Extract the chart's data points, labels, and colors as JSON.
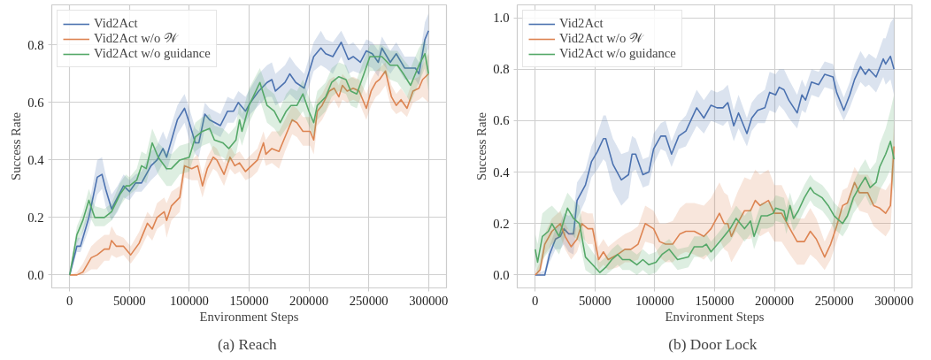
{
  "chart_data": [
    {
      "type": "line",
      "title": "(a)  Reach",
      "xlabel": "Environment Steps",
      "ylabel": "Success Rate",
      "xlim": [
        -15000,
        315000
      ],
      "ylim": [
        -0.045,
        0.94
      ],
      "xticks": [
        0,
        50000,
        100000,
        150000,
        200000,
        250000,
        300000
      ],
      "yticks": [
        {
          "value": 0,
          "label": "0.0"
        },
        {
          "value": 0.2,
          "label": "0.2"
        },
        {
          "value": 0.4,
          "label": "0.4"
        },
        {
          "value": 0.6,
          "label": "0.6"
        },
        {
          "value": 0.8,
          "label": "0.8"
        }
      ],
      "grid": true,
      "legend": "top left",
      "line_style": "solid",
      "marker": "none",
      "series": [
        {
          "name": "Vid2Act",
          "color": "#4c72b0",
          "x": [
            0,
            6000,
            9000,
            16000,
            23000,
            27000,
            30000,
            35000,
            40000,
            45000,
            50000,
            55000,
            60000,
            68000,
            73000,
            78000,
            81000,
            90000,
            96000,
            100000,
            105000,
            108000,
            113000,
            117000,
            126000,
            132000,
            137000,
            141000,
            147000,
            151000,
            158000,
            165000,
            169000,
            172000,
            180000,
            184000,
            189000,
            196000,
            204000,
            210000,
            214000,
            220000,
            227000,
            233000,
            237000,
            243000,
            248000,
            253000,
            258000,
            261000,
            268000,
            273000,
            280000,
            289000,
            292000,
            297000,
            300000
          ],
          "values": [
            0,
            0.1,
            0.1,
            0.2,
            0.34,
            0.35,
            0.3,
            0.23,
            0.27,
            0.31,
            0.29,
            0.32,
            0.32,
            0.38,
            0.4,
            0.44,
            0.41,
            0.54,
            0.58,
            0.53,
            0.46,
            0.46,
            0.56,
            0.54,
            0.52,
            0.57,
            0.57,
            0.6,
            0.57,
            0.6,
            0.64,
            0.67,
            0.68,
            0.64,
            0.67,
            0.7,
            0.67,
            0.65,
            0.76,
            0.79,
            0.77,
            0.76,
            0.81,
            0.75,
            0.76,
            0.74,
            0.78,
            0.77,
            0.74,
            0.79,
            0.74,
            0.77,
            0.72,
            0.72,
            0.7,
            0.82,
            0.85
          ],
          "lower": [
            0,
            0.08,
            0.08,
            0.16,
            0.28,
            0.3,
            0.24,
            0.19,
            0.22,
            0.27,
            0.26,
            0.29,
            0.29,
            0.33,
            0.35,
            0.39,
            0.36,
            0.49,
            0.53,
            0.47,
            0.42,
            0.41,
            0.51,
            0.5,
            0.48,
            0.53,
            0.53,
            0.56,
            0.53,
            0.56,
            0.59,
            0.62,
            0.62,
            0.59,
            0.61,
            0.63,
            0.61,
            0.6,
            0.71,
            0.73,
            0.72,
            0.7,
            0.76,
            0.7,
            0.71,
            0.7,
            0.73,
            0.72,
            0.69,
            0.74,
            0.7,
            0.73,
            0.68,
            0.68,
            0.66,
            0.76,
            0.79
          ],
          "upper": [
            0.02,
            0.13,
            0.13,
            0.24,
            0.4,
            0.41,
            0.35,
            0.28,
            0.31,
            0.35,
            0.33,
            0.35,
            0.36,
            0.43,
            0.45,
            0.5,
            0.47,
            0.59,
            0.63,
            0.58,
            0.51,
            0.5,
            0.6,
            0.58,
            0.56,
            0.62,
            0.61,
            0.64,
            0.62,
            0.65,
            0.7,
            0.73,
            0.74,
            0.7,
            0.73,
            0.76,
            0.73,
            0.7,
            0.81,
            0.85,
            0.82,
            0.81,
            0.85,
            0.8,
            0.81,
            0.78,
            0.82,
            0.81,
            0.78,
            0.83,
            0.78,
            0.81,
            0.76,
            0.76,
            0.74,
            0.88,
            0.91
          ]
        },
        {
          "name": "Vid2Act w/o 𝒲",
          "color": "#dd8452",
          "x": [
            0,
            6000,
            11000,
            18000,
            23000,
            29000,
            33000,
            35000,
            39000,
            45000,
            51000,
            58000,
            65000,
            69000,
            73000,
            79000,
            81000,
            85000,
            92000,
            96000,
            102000,
            107000,
            111000,
            115000,
            120000,
            123000,
            129000,
            134000,
            138000,
            142000,
            147000,
            152000,
            157000,
            162000,
            164000,
            169000,
            175000,
            180000,
            186000,
            190000,
            195000,
            201000,
            204000,
            207000,
            211000,
            217000,
            221000,
            225000,
            228000,
            232000,
            237000,
            242000,
            248000,
            252000,
            256000,
            259000,
            264000,
            269000,
            273000,
            277000,
            282000,
            287000,
            292000,
            295000,
            300000
          ],
          "values": [
            0,
            0,
            0.01,
            0.06,
            0.07,
            0.09,
            0.09,
            0.12,
            0.1,
            0.1,
            0.07,
            0.11,
            0.18,
            0.16,
            0.2,
            0.22,
            0.19,
            0.24,
            0.27,
            0.38,
            0.37,
            0.38,
            0.31,
            0.37,
            0.41,
            0.4,
            0.35,
            0.41,
            0.38,
            0.39,
            0.36,
            0.38,
            0.4,
            0.46,
            0.42,
            0.44,
            0.43,
            0.48,
            0.54,
            0.53,
            0.5,
            0.5,
            0.47,
            0.57,
            0.59,
            0.64,
            0.65,
            0.62,
            0.66,
            0.64,
            0.65,
            0.64,
            0.58,
            0.64,
            0.67,
            0.68,
            0.71,
            0.62,
            0.59,
            0.61,
            0.58,
            0.64,
            0.65,
            0.68,
            0.7
          ],
          "lower": [
            0,
            0,
            0,
            0.02,
            0.02,
            0.05,
            0.05,
            0.07,
            0.06,
            0.07,
            0.04,
            0.08,
            0.14,
            0.12,
            0.16,
            0.18,
            0.13,
            0.19,
            0.22,
            0.34,
            0.33,
            0.33,
            0.27,
            0.33,
            0.37,
            0.36,
            0.31,
            0.37,
            0.35,
            0.36,
            0.33,
            0.34,
            0.36,
            0.41,
            0.38,
            0.39,
            0.37,
            0.43,
            0.49,
            0.48,
            0.45,
            0.45,
            0.42,
            0.52,
            0.54,
            0.59,
            0.61,
            0.58,
            0.61,
            0.6,
            0.61,
            0.6,
            0.54,
            0.59,
            0.62,
            0.63,
            0.66,
            0.58,
            0.56,
            0.57,
            0.55,
            0.6,
            0.61,
            0.62,
            0.6
          ],
          "upper": [
            0,
            0.01,
            0.04,
            0.1,
            0.12,
            0.14,
            0.14,
            0.17,
            0.14,
            0.13,
            0.1,
            0.15,
            0.22,
            0.2,
            0.25,
            0.27,
            0.25,
            0.29,
            0.31,
            0.41,
            0.4,
            0.42,
            0.35,
            0.41,
            0.45,
            0.44,
            0.39,
            0.45,
            0.42,
            0.43,
            0.4,
            0.42,
            0.44,
            0.5,
            0.47,
            0.5,
            0.5,
            0.54,
            0.59,
            0.58,
            0.55,
            0.55,
            0.52,
            0.61,
            0.63,
            0.68,
            0.69,
            0.66,
            0.7,
            0.68,
            0.69,
            0.68,
            0.63,
            0.68,
            0.71,
            0.72,
            0.74,
            0.66,
            0.63,
            0.65,
            0.62,
            0.68,
            0.69,
            0.73,
            0.77
          ]
        },
        {
          "name": "Vid2Act w/o guidance",
          "color": "#55a868",
          "x": [
            0,
            6000,
            11000,
            16000,
            21000,
            29000,
            35000,
            42000,
            47000,
            50000,
            56000,
            60000,
            64000,
            69000,
            74000,
            81000,
            85000,
            92000,
            100000,
            105000,
            111000,
            117000,
            121000,
            128000,
            133000,
            139000,
            142000,
            144000,
            150000,
            159000,
            165000,
            171000,
            176000,
            181000,
            185000,
            190000,
            195000,
            200000,
            204000,
            207000,
            214000,
            219000,
            225000,
            231000,
            235000,
            240000,
            246000,
            251000,
            255000,
            261000,
            268000,
            274000,
            279000,
            285000,
            292000,
            297000,
            300000
          ],
          "values": [
            0,
            0.14,
            0.19,
            0.26,
            0.2,
            0.2,
            0.22,
            0.28,
            0.31,
            0.31,
            0.33,
            0.38,
            0.37,
            0.46,
            0.41,
            0.37,
            0.37,
            0.4,
            0.41,
            0.48,
            0.5,
            0.51,
            0.47,
            0.46,
            0.44,
            0.47,
            0.54,
            0.5,
            0.59,
            0.67,
            0.59,
            0.57,
            0.53,
            0.57,
            0.59,
            0.59,
            0.63,
            0.57,
            0.53,
            0.59,
            0.62,
            0.67,
            0.69,
            0.68,
            0.64,
            0.63,
            0.7,
            0.76,
            0.76,
            0.76,
            0.73,
            0.73,
            0.7,
            0.66,
            0.73,
            0.77,
            0.7
          ],
          "lower": [
            0,
            0.11,
            0.15,
            0.21,
            0.17,
            0.17,
            0.19,
            0.24,
            0.27,
            0.28,
            0.3,
            0.33,
            0.32,
            0.4,
            0.35,
            0.31,
            0.31,
            0.35,
            0.36,
            0.43,
            0.45,
            0.46,
            0.42,
            0.41,
            0.39,
            0.42,
            0.48,
            0.45,
            0.53,
            0.61,
            0.53,
            0.51,
            0.48,
            0.51,
            0.53,
            0.54,
            0.57,
            0.52,
            0.48,
            0.54,
            0.57,
            0.62,
            0.64,
            0.63,
            0.59,
            0.58,
            0.65,
            0.71,
            0.71,
            0.71,
            0.68,
            0.67,
            0.64,
            0.6,
            0.67,
            0.72,
            0.64
          ],
          "upper": [
            0,
            0.17,
            0.22,
            0.3,
            0.24,
            0.23,
            0.25,
            0.32,
            0.35,
            0.34,
            0.37,
            0.43,
            0.42,
            0.51,
            0.46,
            0.43,
            0.42,
            0.45,
            0.46,
            0.53,
            0.55,
            0.56,
            0.52,
            0.51,
            0.49,
            0.52,
            0.6,
            0.56,
            0.65,
            0.72,
            0.65,
            0.63,
            0.58,
            0.63,
            0.65,
            0.64,
            0.68,
            0.62,
            0.58,
            0.64,
            0.67,
            0.72,
            0.74,
            0.73,
            0.69,
            0.68,
            0.75,
            0.8,
            0.8,
            0.8,
            0.78,
            0.78,
            0.75,
            0.72,
            0.79,
            0.82,
            0.76
          ]
        }
      ]
    },
    {
      "type": "line",
      "title": "(b)  Door Lock",
      "xlabel": "Environment Steps",
      "ylabel": "Success Rate",
      "xlim": [
        -15000,
        315000
      ],
      "ylim": [
        -0.05,
        1.05
      ],
      "xticks": [
        0,
        50000,
        100000,
        150000,
        200000,
        250000,
        300000
      ],
      "yticks": [
        {
          "value": 0,
          "label": "0.0"
        },
        {
          "value": 0.2,
          "label": "0.2"
        },
        {
          "value": 0.4,
          "label": "0.4"
        },
        {
          "value": 0.6,
          "label": "0.6"
        },
        {
          "value": 0.8,
          "label": "0.8"
        },
        {
          "value": 1.0,
          "label": "1.0"
        }
      ],
      "grid": true,
      "legend": "top left",
      "line_style": "solid",
      "marker": "none",
      "series": [
        {
          "name": "Vid2Act",
          "color": "#4c72b0",
          "x": [
            0,
            8000,
            12000,
            17000,
            21000,
            24000,
            28000,
            32000,
            35000,
            42000,
            47000,
            52000,
            57000,
            59000,
            65000,
            72000,
            78000,
            81000,
            84000,
            90000,
            95000,
            99000,
            105000,
            109000,
            114000,
            120000,
            126000,
            135000,
            141000,
            147000,
            152000,
            157000,
            161000,
            166000,
            170000,
            177000,
            181000,
            186000,
            192000,
            196000,
            201000,
            204000,
            208000,
            212000,
            219000,
            223000,
            226000,
            231000,
            237000,
            242000,
            249000,
            252000,
            258000,
            263000,
            267000,
            272000,
            276000,
            279000,
            285000,
            291000,
            293000,
            297000,
            300000
          ],
          "values": [
            0,
            0,
            0.08,
            0.14,
            0.15,
            0.18,
            0.16,
            0.16,
            0.29,
            0.35,
            0.44,
            0.48,
            0.53,
            0.53,
            0.43,
            0.37,
            0.39,
            0.47,
            0.47,
            0.39,
            0.4,
            0.49,
            0.54,
            0.54,
            0.47,
            0.54,
            0.56,
            0.65,
            0.61,
            0.66,
            0.65,
            0.65,
            0.67,
            0.58,
            0.63,
            0.55,
            0.61,
            0.64,
            0.65,
            0.71,
            0.7,
            0.73,
            0.72,
            0.68,
            0.63,
            0.7,
            0.68,
            0.75,
            0.74,
            0.78,
            0.77,
            0.71,
            0.64,
            0.7,
            0.76,
            0.81,
            0.78,
            0.8,
            0.77,
            0.84,
            0.82,
            0.85,
            0.8
          ],
          "lower": [
            0,
            0,
            0.05,
            0.1,
            0.1,
            0.12,
            0.09,
            0.08,
            0.22,
            0.29,
            0.38,
            0.41,
            0.45,
            0.44,
            0.33,
            0.27,
            0.3,
            0.4,
            0.41,
            0.34,
            0.35,
            0.43,
            0.49,
            0.48,
            0.42,
            0.49,
            0.5,
            0.58,
            0.55,
            0.6,
            0.59,
            0.58,
            0.6,
            0.52,
            0.57,
            0.5,
            0.56,
            0.59,
            0.59,
            0.64,
            0.63,
            0.66,
            0.64,
            0.61,
            0.57,
            0.64,
            0.63,
            0.7,
            0.69,
            0.73,
            0.72,
            0.66,
            0.6,
            0.65,
            0.7,
            0.75,
            0.73,
            0.74,
            0.71,
            0.77,
            0.74,
            0.76,
            0.7
          ],
          "upper": [
            0,
            0.02,
            0.11,
            0.18,
            0.2,
            0.24,
            0.23,
            0.24,
            0.36,
            0.41,
            0.5,
            0.55,
            0.62,
            0.62,
            0.53,
            0.47,
            0.48,
            0.54,
            0.53,
            0.45,
            0.46,
            0.55,
            0.59,
            0.6,
            0.52,
            0.59,
            0.62,
            0.72,
            0.68,
            0.72,
            0.71,
            0.72,
            0.74,
            0.64,
            0.7,
            0.61,
            0.67,
            0.7,
            0.72,
            0.79,
            0.78,
            0.8,
            0.8,
            0.76,
            0.7,
            0.76,
            0.73,
            0.8,
            0.79,
            0.83,
            0.82,
            0.76,
            0.69,
            0.75,
            0.82,
            0.87,
            0.84,
            0.86,
            0.84,
            0.92,
            0.92,
            0.98,
            1.0
          ]
        },
        {
          "name": "Vid2Act w/o 𝒲",
          "color": "#dd8452",
          "x": [
            0,
            4000,
            8000,
            14000,
            21000,
            25000,
            30000,
            35000,
            39000,
            44000,
            48000,
            53000,
            57000,
            61000,
            69000,
            75000,
            80000,
            86000,
            92000,
            99000,
            104000,
            109000,
            115000,
            121000,
            126000,
            133000,
            141000,
            147000,
            154000,
            158000,
            161000,
            164000,
            169000,
            175000,
            180000,
            184000,
            188000,
            195000,
            200000,
            206000,
            213000,
            219000,
            225000,
            230000,
            235000,
            242000,
            247000,
            252000,
            257000,
            261000,
            267000,
            271000,
            278000,
            283000,
            288000,
            293000,
            297000,
            300000
          ],
          "values": [
            0,
            0.02,
            0.12,
            0.17,
            0.2,
            0.15,
            0.11,
            0.14,
            0.2,
            0.18,
            0.18,
            0.06,
            0.09,
            0.06,
            0.08,
            0.1,
            0.1,
            0.12,
            0.2,
            0.18,
            0.13,
            0.12,
            0.12,
            0.16,
            0.17,
            0.17,
            0.15,
            0.18,
            0.24,
            0.2,
            0.2,
            0.15,
            0.2,
            0.25,
            0.25,
            0.29,
            0.27,
            0.29,
            0.24,
            0.24,
            0.18,
            0.13,
            0.13,
            0.17,
            0.14,
            0.07,
            0.12,
            0.19,
            0.27,
            0.28,
            0.36,
            0.32,
            0.32,
            0.27,
            0.26,
            0.24,
            0.27,
            0.5
          ],
          "lower": [
            0,
            0,
            0.08,
            0.12,
            0.15,
            0.1,
            0.06,
            0.09,
            0.15,
            0.12,
            0.12,
            0.02,
            0.04,
            0.02,
            0.03,
            0.05,
            0.05,
            0.06,
            0.13,
            0.12,
            0.07,
            0.05,
            0.05,
            0.08,
            0.09,
            0.08,
            0.06,
            0.09,
            0.14,
            0.1,
            0.09,
            0.05,
            0.09,
            0.14,
            0.14,
            0.17,
            0.15,
            0.17,
            0.13,
            0.13,
            0.08,
            0.04,
            0.04,
            0.08,
            0.06,
            0.02,
            0.06,
            0.13,
            0.2,
            0.22,
            0.29,
            0.25,
            0.24,
            0.19,
            0.17,
            0.15,
            0.18,
            0.4
          ],
          "upper": [
            0.01,
            0.05,
            0.16,
            0.22,
            0.25,
            0.2,
            0.16,
            0.19,
            0.25,
            0.24,
            0.24,
            0.11,
            0.14,
            0.11,
            0.14,
            0.16,
            0.17,
            0.19,
            0.27,
            0.25,
            0.2,
            0.2,
            0.21,
            0.26,
            0.28,
            0.28,
            0.27,
            0.3,
            0.36,
            0.32,
            0.31,
            0.26,
            0.32,
            0.38,
            0.37,
            0.41,
            0.39,
            0.41,
            0.35,
            0.35,
            0.28,
            0.22,
            0.22,
            0.26,
            0.22,
            0.13,
            0.18,
            0.25,
            0.33,
            0.34,
            0.42,
            0.39,
            0.39,
            0.35,
            0.34,
            0.33,
            0.36,
            0.6
          ]
        },
        {
          "name": "Vid2Act w/o guidance",
          "color": "#55a868",
          "x": [
            0,
            2000,
            6000,
            11000,
            14000,
            20000,
            27000,
            32000,
            37000,
            42000,
            48000,
            54000,
            59000,
            64000,
            69000,
            73000,
            79000,
            85000,
            90000,
            95000,
            101000,
            106000,
            112000,
            119000,
            128000,
            133000,
            140000,
            143000,
            147000,
            156000,
            163000,
            168000,
            175000,
            180000,
            183000,
            189000,
            194000,
            199000,
            201000,
            208000,
            210000,
            213000,
            216000,
            220000,
            225000,
            230000,
            233000,
            240000,
            245000,
            250000,
            257000,
            261000,
            266000,
            272000,
            276000,
            280000,
            285000,
            288000,
            293000,
            297000,
            300000
          ],
          "values": [
            0.1,
            0.05,
            0.15,
            0.17,
            0.2,
            0.15,
            0.26,
            0.22,
            0.2,
            0.07,
            0.04,
            0.01,
            0.03,
            0.06,
            0.08,
            0.06,
            0.06,
            0.04,
            0.06,
            0.04,
            0.05,
            0.08,
            0.1,
            0.06,
            0.07,
            0.11,
            0.11,
            0.12,
            0.09,
            0.14,
            0.18,
            0.22,
            0.18,
            0.21,
            0.15,
            0.23,
            0.23,
            0.24,
            0.26,
            0.25,
            0.21,
            0.27,
            0.22,
            0.25,
            0.3,
            0.34,
            0.32,
            0.3,
            0.27,
            0.23,
            0.2,
            0.23,
            0.3,
            0.35,
            0.38,
            0.34,
            0.36,
            0.42,
            0.47,
            0.52,
            0.45
          ],
          "lower": [
            0.04,
            0.0,
            0.06,
            0.09,
            0.12,
            0.08,
            0.18,
            0.15,
            0.13,
            0.02,
            0.0,
            0.0,
            0.0,
            0.02,
            0.04,
            0.02,
            0.02,
            0.0,
            0.02,
            0.0,
            0.01,
            0.04,
            0.06,
            0.02,
            0.03,
            0.07,
            0.07,
            0.08,
            0.05,
            0.1,
            0.13,
            0.17,
            0.13,
            0.16,
            0.1,
            0.18,
            0.18,
            0.19,
            0.21,
            0.2,
            0.16,
            0.22,
            0.17,
            0.2,
            0.25,
            0.29,
            0.27,
            0.25,
            0.22,
            0.18,
            0.15,
            0.18,
            0.24,
            0.28,
            0.31,
            0.27,
            0.28,
            0.33,
            0.37,
            0.41,
            0.32
          ],
          "upper": [
            0.16,
            0.12,
            0.24,
            0.26,
            0.27,
            0.24,
            0.32,
            0.29,
            0.27,
            0.13,
            0.09,
            0.05,
            0.07,
            0.1,
            0.12,
            0.1,
            0.1,
            0.08,
            0.1,
            0.08,
            0.09,
            0.12,
            0.14,
            0.1,
            0.11,
            0.15,
            0.15,
            0.16,
            0.13,
            0.18,
            0.23,
            0.27,
            0.23,
            0.26,
            0.2,
            0.28,
            0.28,
            0.29,
            0.31,
            0.3,
            0.26,
            0.32,
            0.27,
            0.3,
            0.35,
            0.39,
            0.37,
            0.35,
            0.32,
            0.28,
            0.25,
            0.28,
            0.36,
            0.42,
            0.45,
            0.41,
            0.44,
            0.51,
            0.57,
            0.64,
            0.7
          ]
        }
      ]
    }
  ]
}
